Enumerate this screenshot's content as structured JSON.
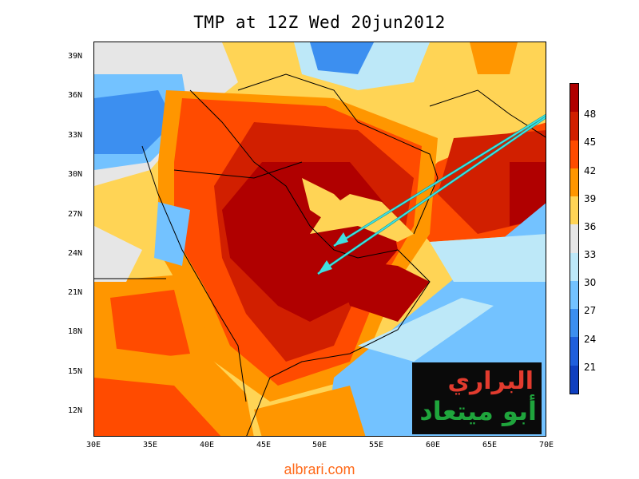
{
  "map": {
    "title": "TMP at 12Z Wed 20jun2012",
    "lat_labels": [
      "39N",
      "36N",
      "33N",
      "30N",
      "27N",
      "24N",
      "21N",
      "18N",
      "15N",
      "12N"
    ],
    "lon_labels": [
      "30E",
      "35E",
      "40E",
      "45E",
      "50E",
      "55E",
      "60E",
      "65E",
      "70E"
    ],
    "legend": {
      "levels": [
        "48",
        "45",
        "42",
        "39",
        "36",
        "33",
        "30",
        "27",
        "24",
        "21"
      ],
      "colors": [
        "#b00000",
        "#d11f00",
        "#ff4b00",
        "#ff9600",
        "#ffd455",
        "#e6e6e6",
        "#bde8f8",
        "#73c2ff",
        "#3c8ff0",
        "#1f5fdc",
        "#0f3fc0"
      ]
    },
    "logo": {
      "line1": "البراري",
      "line2": "أبو ميتعاد"
    },
    "footer": "albrari.com"
  }
}
